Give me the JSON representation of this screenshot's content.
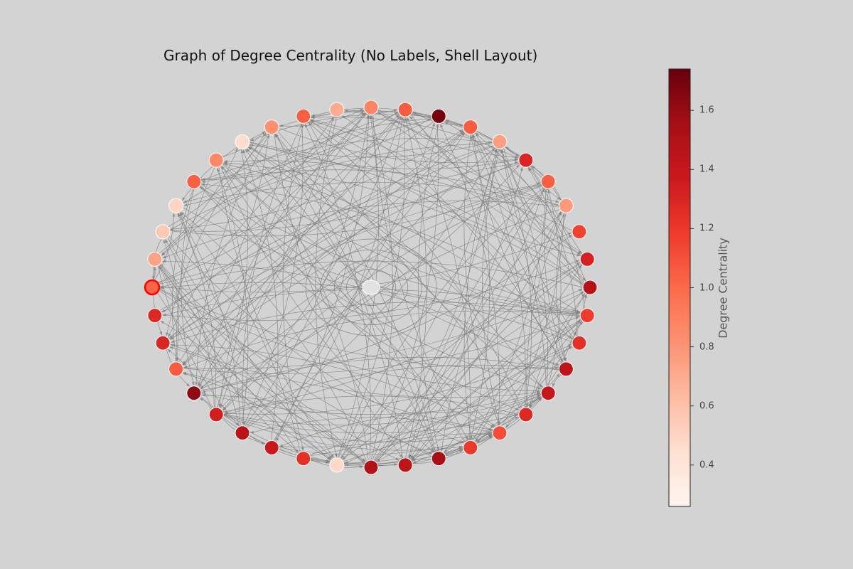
{
  "title": "Graph of Degree Centrality (No Labels, Shell Layout)",
  "colorbar": {
    "label": "Degree Centrality",
    "min": 0.26,
    "max": 1.74,
    "ticks": [
      "0.4",
      "0.6",
      "0.8",
      "1.0",
      "1.2",
      "1.4",
      "1.6"
    ],
    "colormap": "Reds"
  },
  "graph": {
    "layout": "shell",
    "directed": true,
    "node_count": 40,
    "edge_color": "#808080",
    "node_outline": "#ffffff",
    "highlight_outline": "#ff0000",
    "highlighted_node": 0,
    "self_loop_node": "center",
    "node_values": [
      1.02,
      1.28,
      1.3,
      1.06,
      1.62,
      1.34,
      1.46,
      1.38,
      1.24,
      0.48,
      1.5,
      1.44,
      1.54,
      1.2,
      1.12,
      1.28,
      1.4,
      1.44,
      1.24,
      1.18,
      1.48,
      1.32,
      1.16,
      0.78,
      1.04,
      1.3,
      0.76,
      1.06,
      1.7,
      1.06,
      0.88,
      0.7,
      1.04,
      0.82,
      0.46,
      0.86,
      1.04,
      0.5,
      0.56,
      0.74
    ]
  }
}
